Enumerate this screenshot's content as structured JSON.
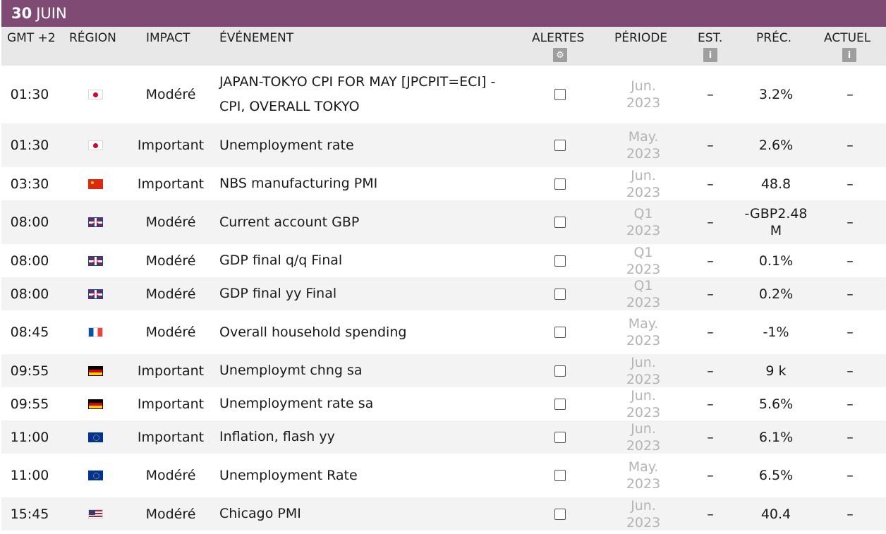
{
  "date": {
    "day": "30",
    "month": "JUIN"
  },
  "headers": {
    "time": "GMT +2",
    "region": "RÉGION",
    "impact": "IMPACT",
    "event": "ÉVÉNEMENT",
    "alerts": "ALERTES",
    "period": "PÉRIODE",
    "est": "EST.",
    "prev": "PRÉC.",
    "actual": "ACTUEL",
    "alerts_icon": "gear-icon",
    "info_icon": "info-icon"
  },
  "rows": [
    {
      "time": "01:30",
      "region": "jp",
      "impact": "Modéré",
      "event": "JAPAN-TOKYO CPI FOR MAY [JPCPIT=ECI] - CPI, OVERALL TOKYO",
      "period": "Jun. 2023",
      "est": "–",
      "prev": "3.2%",
      "actual": "–"
    },
    {
      "time": "01:30",
      "region": "jp",
      "impact": "Important",
      "event": "Unemployment rate",
      "period": "May. 2023",
      "est": "–",
      "prev": "2.6%",
      "actual": "–"
    },
    {
      "time": "03:30",
      "region": "cn",
      "impact": "Important",
      "event": "NBS manufacturing PMI",
      "period": "Jun. 2023",
      "est": "–",
      "prev": "48.8",
      "actual": "–"
    },
    {
      "time": "08:00",
      "region": "gb",
      "impact": "Modéré",
      "event": "Current account GBP",
      "period": "Q1 2023",
      "est": "–",
      "prev": "-GBP2.48 M",
      "actual": "–"
    },
    {
      "time": "08:00",
      "region": "gb",
      "impact": "Modéré",
      "event": "GDP final q/q Final",
      "period": "Q1 2023",
      "est": "–",
      "prev": "0.1%",
      "actual": "–"
    },
    {
      "time": "08:00",
      "region": "gb",
      "impact": "Modéré",
      "event": "GDP final yy Final",
      "period": "Q1 2023",
      "est": "–",
      "prev": "0.2%",
      "actual": "–"
    },
    {
      "time": "08:45",
      "region": "fr",
      "impact": "Modéré",
      "event": "Overall household spending",
      "period": "May. 2023",
      "est": "–",
      "prev": "-1%",
      "actual": "–"
    },
    {
      "time": "09:55",
      "region": "de",
      "impact": "Important",
      "event": "Unemploymt chng sa",
      "period": "Jun. 2023",
      "est": "–",
      "prev": "9 k",
      "actual": "–"
    },
    {
      "time": "09:55",
      "region": "de",
      "impact": "Important",
      "event": "Unemployment rate sa",
      "period": "Jun. 2023",
      "est": "–",
      "prev": "5.6%",
      "actual": "–"
    },
    {
      "time": "11:00",
      "region": "eu",
      "impact": "Important",
      "event": "Inflation, flash yy",
      "period": "Jun. 2023",
      "est": "–",
      "prev": "6.1%",
      "actual": "–"
    },
    {
      "time": "11:00",
      "region": "eu",
      "impact": "Modéré",
      "event": "Unemployment Rate",
      "period": "May. 2023",
      "est": "–",
      "prev": "6.5%",
      "actual": "–"
    },
    {
      "time": "15:45",
      "region": "us",
      "impact": "Modéré",
      "event": "Chicago PMI",
      "period": "Jun. 2023",
      "est": "–",
      "prev": "40.4",
      "actual": "–"
    }
  ],
  "colors": {
    "date_bar": "#7f4b74",
    "header_bg": "#e8e8e8",
    "alt_row": "#f3f3f3",
    "muted": "#b4b4b4"
  }
}
